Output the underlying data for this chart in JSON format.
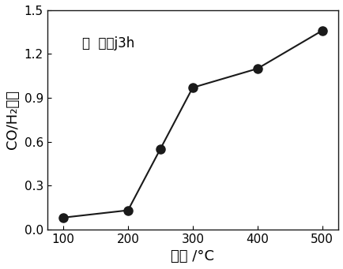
{
  "x": [
    100,
    200,
    250,
    300,
    400,
    500
  ],
  "y": [
    0.08,
    0.13,
    0.55,
    0.97,
    1.1,
    1.36
  ],
  "xlabel": "温度 /°C",
  "ylabel": "CO/H₂比例",
  "annotation": "时  间为j3h",
  "xlim": [
    75,
    525
  ],
  "ylim": [
    0.0,
    1.5
  ],
  "xticks": [
    100,
    200,
    300,
    400,
    500
  ],
  "yticks": [
    0.0,
    0.3,
    0.6,
    0.9,
    1.2,
    1.5
  ],
  "line_color": "#1a1a1a",
  "marker_color": "#1a1a1a",
  "marker_size": 8,
  "line_width": 1.5,
  "bg_color": "#ffffff",
  "annotation_fontsize": 12,
  "label_fontsize": 13,
  "tick_fontsize": 11
}
